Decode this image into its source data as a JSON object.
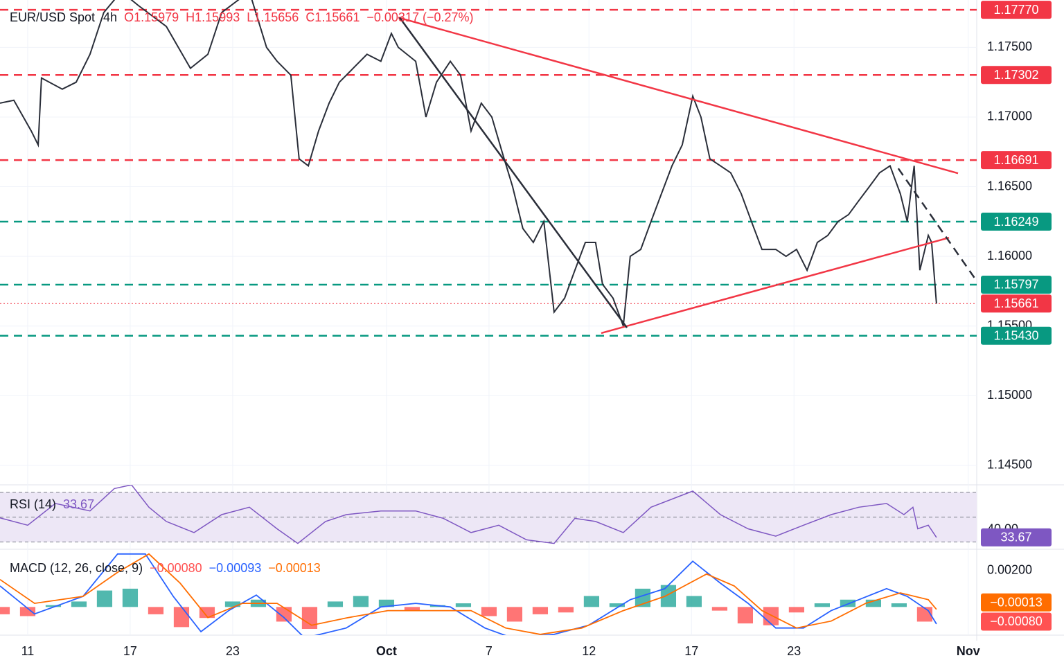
{
  "chart_data": [
    {
      "type": "line",
      "title": "EUR/USD Spot",
      "interval": "4h",
      "quote": [
        "O1.15979",
        "H1.15993",
        "L1.15656",
        "C1.15661",
        "−0.00317 (−0.27%)"
      ],
      "color": "#2a2e39",
      "x": [
        -1.08,
        -0.54,
        0.14,
        0.41,
        0.54,
        1.35,
        1.89,
        2.43,
        2.97,
        3.65,
        4.32,
        5.41,
        6.35,
        7.03,
        7.57,
        8.65,
        9.32,
        9.73,
        10.27,
        10.59,
        10.95,
        11.35,
        11.76,
        12.16,
        12.7,
        13.24,
        13.78,
        14.19,
        14.46,
        15.14,
        15.54,
        15.95,
        16.49,
        16.89,
        17.3,
        17.7,
        18.11,
        18.51,
        18.92,
        19.32,
        19.73,
        20.14,
        20.54,
        20.95,
        21.35,
        21.76,
        22.16,
        22.43,
        22.84,
        23.24,
        23.51,
        23.92,
        24.32,
        24.73,
        25.14,
        25.54,
        25.95,
        26.27,
        26.62,
        27.03,
        27.43,
        27.84,
        28.24,
        28.65,
        29.19,
        29.59,
        30,
        30.41,
        30.81,
        31.22,
        31.62,
        32.03,
        32.43,
        32.84,
        33.24,
        33.65,
        34.05,
        34.32,
        34.59,
        34.81,
        35.14,
        35.27,
        35.46
      ],
      "values": [
        1.171,
        1.1712,
        1.169,
        1.168,
        1.1728,
        1.172,
        1.1725,
        1.1745,
        1.1775,
        1.179,
        1.178,
        1.1765,
        1.1735,
        1.1745,
        1.1775,
        1.179,
        1.175,
        1.174,
        1.173,
        1.167,
        1.1665,
        1.169,
        1.171,
        1.1725,
        1.1735,
        1.1745,
        1.174,
        1.176,
        1.175,
        1.174,
        1.17,
        1.1725,
        1.174,
        1.173,
        1.169,
        1.171,
        1.17,
        1.1675,
        1.165,
        1.162,
        1.161,
        1.1625,
        1.156,
        1.157,
        1.159,
        1.161,
        1.161,
        1.158,
        1.157,
        1.155,
        1.16,
        1.1605,
        1.1625,
        1.1645,
        1.1665,
        1.168,
        1.1715,
        1.17,
        1.167,
        1.1665,
        1.166,
        1.1645,
        1.1625,
        1.1605,
        1.1605,
        1.16,
        1.1605,
        1.159,
        1.161,
        1.1615,
        1.1625,
        1.163,
        1.164,
        1.165,
        1.166,
        1.1665,
        1.1645,
        1.1625,
        1.1665,
        1.159,
        1.1615,
        1.161,
        1.15661
      ],
      "xlim": [
        -1.08,
        37.03
      ],
      "ylim": [
        1.1436,
        1.1784
      ],
      "xticks": [
        {
          "value": 0,
          "label": "11"
        },
        {
          "value": 4,
          "label": "17"
        },
        {
          "value": 8,
          "label": "23"
        },
        {
          "value": 14,
          "label": "Oct"
        },
        {
          "value": 18,
          "label": "7"
        },
        {
          "value": 21.9,
          "label": "12"
        },
        {
          "value": 25.9,
          "label": "17"
        },
        {
          "value": 29.9,
          "label": "23"
        },
        {
          "value": 36.7,
          "label": "Nov"
        }
      ],
      "yticks": [
        {
          "value": 1.175,
          "label": "1.17500"
        },
        {
          "value": 1.17,
          "label": "1.17000"
        },
        {
          "value": 1.165,
          "label": "1.16500"
        },
        {
          "value": 1.16,
          "label": "1.16000"
        },
        {
          "value": 1.155,
          "label": "1.15500"
        },
        {
          "value": 1.15,
          "label": "1.15000"
        },
        {
          "value": 1.145,
          "label": "1.14500"
        }
      ],
      "grid": true,
      "levels": [
        {
          "value": 1.1777,
          "label": "1.17770",
          "color": "#f23645",
          "style": "dashed"
        },
        {
          "value": 1.17302,
          "label": "1.17302",
          "color": "#f23645",
          "style": "dashed"
        },
        {
          "value": 1.16691,
          "label": "1.16691",
          "color": "#f23645",
          "style": "dashed"
        },
        {
          "value": 1.16249,
          "label": "1.16249",
          "color": "#089981",
          "style": "dashed"
        },
        {
          "value": 1.15797,
          "label": "1.15797",
          "color": "#089981",
          "style": "dashed"
        },
        {
          "value": 1.15661,
          "label": "1.15661",
          "color": "#f23645",
          "style": "dotted"
        },
        {
          "value": 1.1543,
          "label": "1.15430",
          "color": "#089981",
          "style": "dashed"
        }
      ],
      "trendlines": [
        {
          "x": [
            14.46,
            36.3
          ],
          "values": [
            1.17714,
            1.16596
          ],
          "color": "#f23645",
          "style": "solid"
        },
        {
          "x": [
            22.38,
            35.95
          ],
          "values": [
            1.15449,
            1.16134
          ],
          "color": "#f23645",
          "style": "solid"
        },
        {
          "x": [
            14.51,
            23.38
          ],
          "values": [
            1.17714,
            1.15488
          ],
          "color": "#2a2e39",
          "style": "solid"
        },
        {
          "x": [
            33.97,
            37.11
          ],
          "values": [
            1.16631,
            1.15801
          ],
          "color": "#2a2e39",
          "style": "dashed"
        }
      ]
    },
    {
      "type": "line",
      "title": "RSI (14)",
      "value_label": "33.67",
      "color": "#7e57c2",
      "x": [
        -1.08,
        0,
        1.08,
        2.43,
        3.38,
        4.05,
        4.73,
        5.41,
        6.49,
        7.57,
        8.65,
        9.73,
        10.54,
        11.62,
        12.43,
        13.78,
        15.14,
        16.22,
        17.3,
        18.38,
        19.46,
        20.54,
        21.35,
        22.16,
        23.24,
        24.32,
        25.95,
        27.03,
        28.11,
        29.19,
        30.27,
        31.35,
        32.43,
        33.51,
        34.19,
        34.54,
        34.73,
        35.14,
        35.46
      ],
      "values": [
        49.4,
        43.5,
        61,
        55,
        73,
        76,
        58,
        46.5,
        37.6,
        52,
        58,
        40.6,
        28.8,
        46.5,
        52,
        55,
        55,
        49,
        37.6,
        43.5,
        31.8,
        28.8,
        49,
        46.5,
        37.6,
        58,
        71,
        52,
        40.6,
        34.7,
        43.5,
        52,
        58,
        61,
        52,
        58,
        40.6,
        43.5,
        33.67
      ],
      "ylim": [
        24.7,
        76
      ],
      "yticks": [
        {
          "value": 40,
          "label": "40.00"
        }
      ],
      "levels": [
        70,
        50,
        30
      ],
      "band_color": "#ede7f6"
    },
    {
      "type": "macd",
      "title": "MACD (12, 26, close, 9)",
      "legend": [
        "−0.00080",
        "−0.00093",
        "−0.00013"
      ],
      "hist_colors": [
        "#26a69a",
        "#ff5252"
      ],
      "hist_x": [
        -1,
        0,
        1,
        2,
        3,
        4,
        5,
        6,
        7,
        8,
        9,
        10,
        11,
        12,
        13,
        14,
        15,
        16,
        17,
        18,
        19,
        20,
        21,
        22,
        23,
        24,
        25,
        26,
        27,
        28,
        29,
        30,
        31,
        32,
        33,
        34,
        35
      ],
      "histogram": [
        -0.0004,
        -0.0005,
        0.0001,
        0.0003,
        0.0009,
        0.001,
        -0.0004,
        -0.0011,
        -0.0006,
        0.0003,
        0.0004,
        -0.0008,
        -0.0012,
        0.0003,
        0.0006,
        0.0004,
        -0.0002,
        0.0001,
        0.0002,
        -0.0005,
        -0.0008,
        -0.0004,
        -0.0003,
        0.0006,
        0.0002,
        0.001,
        0.0012,
        0.0006,
        -0.0002,
        -0.0009,
        -0.001,
        -0.0003,
        0.0002,
        0.0004,
        0.0004,
        0.0002,
        -0.0008
      ],
      "series": [
        {
          "name": "MACD",
          "color": "#2962ff",
          "x": [
            -1.08,
            0.27,
            2.16,
            3.51,
            4.59,
            5.68,
            6.76,
            7.84,
            8.92,
            10,
            10.81,
            12.43,
            13.78,
            15.14,
            16.49,
            17.84,
            18.92,
            20.54,
            21.89,
            23.51,
            24.86,
            25.95,
            27.03,
            28.11,
            29.19,
            30.27,
            31.35,
            32.43,
            33.51,
            34.32,
            35.14,
            35.46
          ],
          "values": [
            0.00115,
            -0.00038,
            0.00058,
            0.0029,
            0.0029,
            0.00058,
            -0.00135,
            -0.0002,
            0.00065,
            -0.00058,
            -0.0017,
            -0.00115,
            0,
            0.0002,
            0,
            -0.00115,
            -0.0017,
            -0.0015,
            -0.001,
            0.0004,
            0.001,
            0.0025,
            0.0013,
            0.0002,
            -0.00115,
            -0.00115,
            -0.0002,
            0.0004,
            0.001,
            0.00058,
            -0.0002,
            -0.00093
          ]
        },
        {
          "name": "Signal",
          "color": "#ff6d00",
          "x": [
            -1.08,
            0.27,
            2.16,
            3.51,
            4.73,
            5.95,
            7.03,
            8.38,
            9.73,
            11.08,
            12.43,
            14.05,
            15.68,
            17.3,
            18.65,
            20,
            21.62,
            23.24,
            24.86,
            26.49,
            27.57,
            28.65,
            30,
            31.35,
            32.7,
            34.05,
            35.14,
            35.46
          ],
          "values": [
            0.0015,
            0.0002,
            0.00058,
            0.0019,
            0.0029,
            0.0013,
            -0.00058,
            0.0002,
            0.0002,
            -0.001,
            -0.0006,
            -0.0002,
            -0.0002,
            -0.0002,
            -0.00115,
            -0.0015,
            -0.00115,
            -0.0002,
            0.00058,
            0.0018,
            0.00115,
            -0.0002,
            -0.00115,
            -0.00077,
            0.0002,
            0.00077,
            0.0004,
            -0.00013
          ]
        }
      ],
      "ylim": [
        -0.00154,
        0.00308
      ],
      "yticks": [
        {
          "value": 0.002,
          "label": "0.00200"
        }
      ],
      "tags": [
        {
          "value": -0.00013,
          "label": "−0.00013",
          "color": "#ff6d00"
        },
        {
          "value": -0.0008,
          "label": "−0.00080",
          "color": "#ff5252"
        }
      ]
    }
  ]
}
